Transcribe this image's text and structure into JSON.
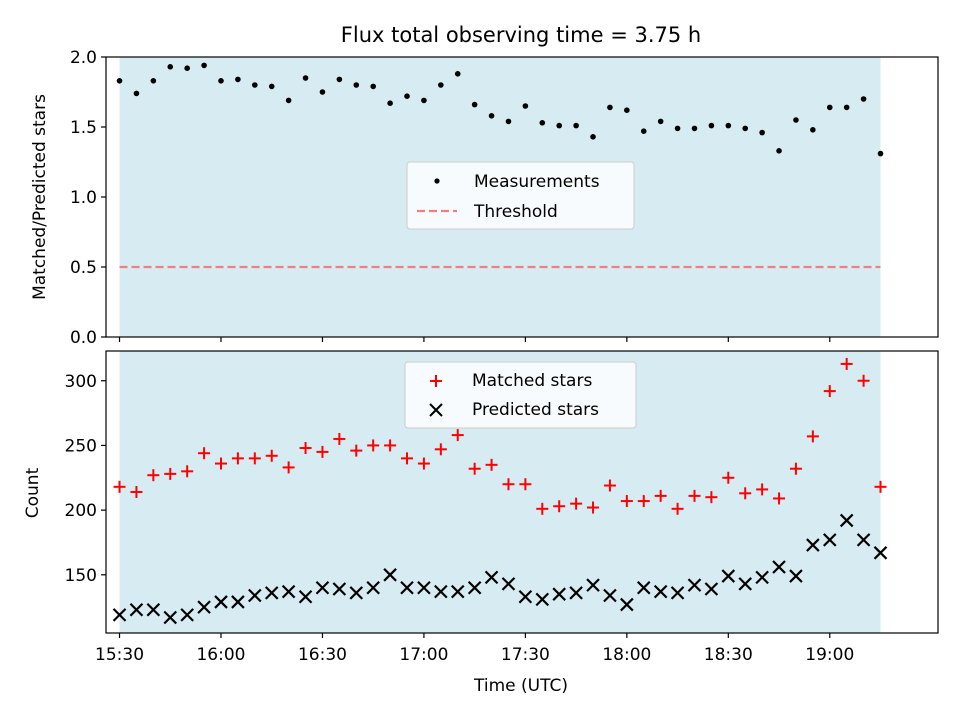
{
  "chart_data": [
    {
      "type": "scatter",
      "title": "Flux total observing time = 3.75 h",
      "xlabel": "",
      "ylabel": "Matched/Predicted stars",
      "ylim": [
        0.0,
        2.0
      ],
      "yticks": [
        "0.0",
        "0.5",
        "1.0",
        "1.5",
        "2.0"
      ],
      "xlim": [
        "15:26",
        "19:32"
      ],
      "shaded_span": [
        "15:30",
        "19:15"
      ],
      "shaded_color": "#add8e6",
      "legend_position": "center",
      "series": [
        {
          "name": "Measurements",
          "marker": "dot",
          "color": "#000000",
          "x": [
            "15:30",
            "15:35",
            "15:40",
            "15:45",
            "15:50",
            "15:55",
            "16:00",
            "16:05",
            "16:10",
            "16:15",
            "16:20",
            "16:25",
            "16:30",
            "16:35",
            "16:40",
            "16:45",
            "16:50",
            "16:55",
            "17:00",
            "17:05",
            "17:10",
            "17:15",
            "17:20",
            "17:25",
            "17:30",
            "17:35",
            "17:40",
            "17:45",
            "17:50",
            "17:55",
            "18:00",
            "18:05",
            "18:10",
            "18:15",
            "18:20",
            "18:25",
            "18:30",
            "18:35",
            "18:40",
            "18:45",
            "18:50",
            "18:55",
            "19:00",
            "19:05",
            "19:10",
            "19:15"
          ],
          "y": [
            1.83,
            1.74,
            1.83,
            1.93,
            1.92,
            1.94,
            1.83,
            1.84,
            1.8,
            1.79,
            1.69,
            1.85,
            1.75,
            1.84,
            1.8,
            1.79,
            1.67,
            1.72,
            1.69,
            1.8,
            1.88,
            1.66,
            1.58,
            1.54,
            1.65,
            1.53,
            1.51,
            1.51,
            1.43,
            1.64,
            1.62,
            1.47,
            1.54,
            1.49,
            1.49,
            1.51,
            1.51,
            1.49,
            1.46,
            1.33,
            1.55,
            1.48,
            1.64,
            1.64,
            1.7,
            1.31
          ]
        },
        {
          "name": "Threshold",
          "style": "dashed",
          "color": "#f08080",
          "x": [
            "15:30",
            "19:15"
          ],
          "y": [
            0.5,
            0.5
          ]
        }
      ]
    },
    {
      "type": "scatter",
      "title": "",
      "xlabel": "Time (UTC)",
      "ylabel": "Count",
      "ylim": [
        105,
        323
      ],
      "yticks": [
        "150",
        "200",
        "250",
        "300"
      ],
      "xlim": [
        "15:26",
        "19:32"
      ],
      "xticks": [
        "15:30",
        "16:00",
        "16:30",
        "17:00",
        "17:30",
        "18:00",
        "18:30",
        "19:00"
      ],
      "shaded_span": [
        "15:30",
        "19:15"
      ],
      "shaded_color": "#add8e6",
      "legend_position": "upper-center",
      "series": [
        {
          "name": "Matched stars",
          "marker": "plus",
          "color": "#ff0000",
          "x": [
            "15:30",
            "15:35",
            "15:40",
            "15:45",
            "15:50",
            "15:55",
            "16:00",
            "16:05",
            "16:10",
            "16:15",
            "16:20",
            "16:25",
            "16:30",
            "16:35",
            "16:40",
            "16:45",
            "16:50",
            "16:55",
            "17:00",
            "17:05",
            "17:10",
            "17:15",
            "17:20",
            "17:25",
            "17:30",
            "17:35",
            "17:40",
            "17:45",
            "17:50",
            "17:55",
            "18:00",
            "18:05",
            "18:10",
            "18:15",
            "18:20",
            "18:25",
            "18:30",
            "18:35",
            "18:40",
            "18:45",
            "18:50",
            "18:55",
            "19:00",
            "19:05",
            "19:10",
            "19:15"
          ],
          "y": [
            218,
            214,
            227,
            228,
            230,
            244,
            236,
            240,
            240,
            242,
            233,
            248,
            245,
            255,
            246,
            250,
            250,
            240,
            236,
            247,
            258,
            232,
            235,
            220,
            220,
            201,
            203,
            205,
            202,
            219,
            207,
            207,
            211,
            201,
            211,
            210,
            225,
            213,
            216,
            209,
            232,
            257,
            292,
            313,
            300,
            218
          ]
        },
        {
          "name": "Predicted stars",
          "marker": "x",
          "color": "#000000",
          "x": [
            "15:30",
            "15:35",
            "15:40",
            "15:45",
            "15:50",
            "15:55",
            "16:00",
            "16:05",
            "16:10",
            "16:15",
            "16:20",
            "16:25",
            "16:30",
            "16:35",
            "16:40",
            "16:45",
            "16:50",
            "16:55",
            "17:00",
            "17:05",
            "17:10",
            "17:15",
            "17:20",
            "17:25",
            "17:30",
            "17:35",
            "17:40",
            "17:45",
            "17:50",
            "17:55",
            "18:00",
            "18:05",
            "18:10",
            "18:15",
            "18:20",
            "18:25",
            "18:30",
            "18:35",
            "18:40",
            "18:45",
            "18:50",
            "18:55",
            "19:00",
            "19:05",
            "19:10",
            "19:15"
          ],
          "y": [
            119,
            123,
            123,
            117,
            119,
            125,
            129,
            129,
            134,
            136,
            137,
            133,
            140,
            139,
            136,
            140,
            150,
            140,
            140,
            137,
            137,
            140,
            148,
            143,
            133,
            131,
            135,
            136,
            142,
            134,
            127,
            140,
            137,
            136,
            142,
            139,
            149,
            143,
            148,
            156,
            149,
            173,
            177,
            192,
            177,
            167
          ]
        }
      ]
    }
  ]
}
